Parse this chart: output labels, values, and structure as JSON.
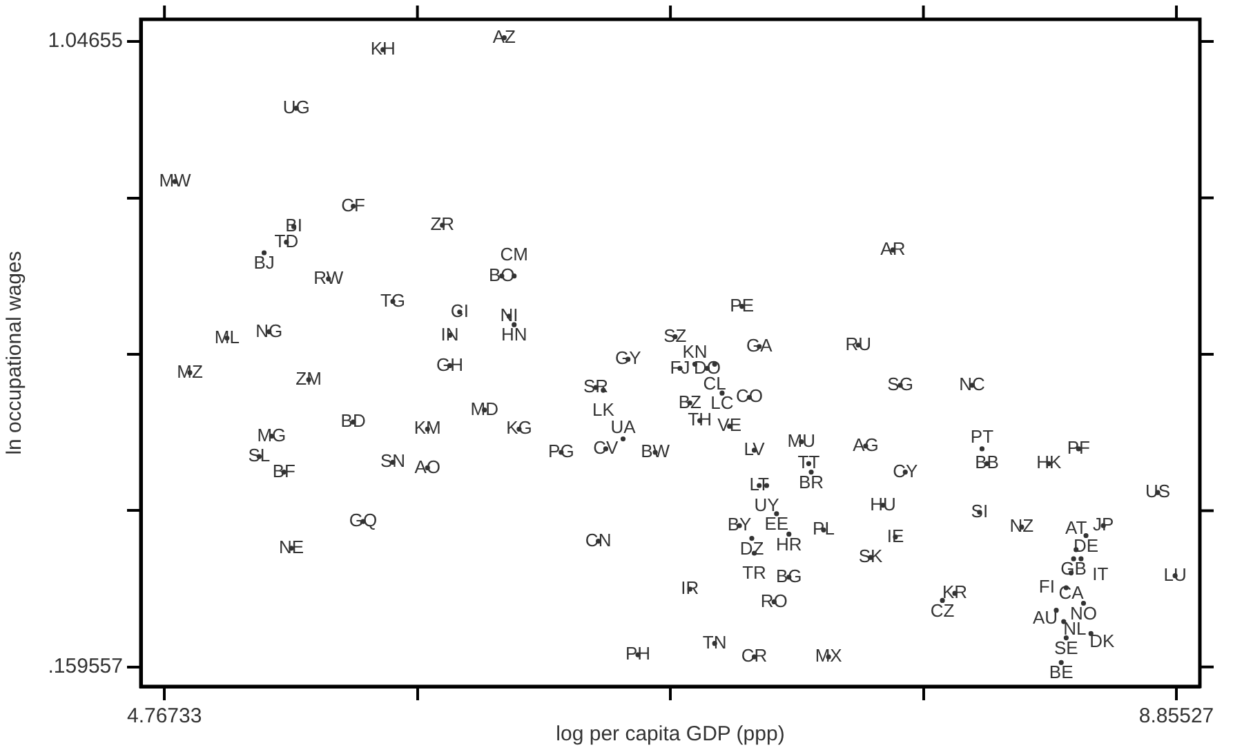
{
  "chart_data": {
    "type": "scatter",
    "xlabel": "log per capita GDP (ppp)",
    "ylabel": "ln occupational wages",
    "grid": false,
    "legend": false,
    "xlim": [
      4.672,
      8.95
    ],
    "ylim": [
      0.132,
      1.078
    ],
    "xticks": [
      4.76733,
      {
        "value": 5.789315,
        "label": null
      },
      {
        "value": 6.8113,
        "label": null
      },
      {
        "value": 7.833285,
        "label": null
      },
      8.85527
    ],
    "yticks": [
      {
        "value": 0.159557,
        "label": ".159557"
      },
      {
        "value": 0.38130525,
        "label": null
      },
      {
        "value": 0.6030535,
        "label": null
      },
      {
        "value": 0.82480175,
        "label": null
      },
      1.04655
    ],
    "series": [
      {
        "color": "#333333",
        "x": [
          5.65,
          6.14,
          5.3,
          4.81,
          5.53,
          5.29,
          5.26,
          5.17,
          5.89,
          5.43,
          6.13,
          6.18,
          5.69,
          5.96,
          6.16,
          6.18,
          5.92,
          5.02,
          5.19,
          4.87,
          5.35,
          5.92,
          6.64,
          6.51,
          6.54,
          6.83,
          6.85,
          6.91,
          6.96,
          6.99,
          7.1,
          7.17,
          7.57,
          7.74,
          8.03,
          7.71,
          6.89,
          7.02,
          7.13,
          6.93,
          7.05,
          5.53,
          5.83,
          6.06,
          6.2,
          5.2,
          5.15,
          5.25,
          5.69,
          5.83,
          6.37,
          6.55,
          6.62,
          6.75,
          7.15,
          7.34,
          7.37,
          7.38,
          7.6,
          7.76,
          8.09,
          8.07,
          8.34,
          8.46,
          8.78,
          7.17,
          7.2,
          7.67,
          8.06,
          8.23,
          8.56,
          8.49,
          8.45,
          8.44,
          8.47,
          8.43,
          8.41,
          8.48,
          8.37,
          8.4,
          8.41,
          8.51,
          8.39,
          8.85,
          5.57,
          5.28,
          6.52,
          7.24,
          7.09,
          7.29,
          7.43,
          7.14,
          7.15,
          7.72,
          7.62,
          7.29,
          6.89,
          7.23,
          7.96,
          7.91,
          6.68,
          6.99,
          7.15,
          7.45
        ],
        "values": [
          1.035,
          1.052,
          0.952,
          0.848,
          0.813,
          0.784,
          0.762,
          0.747,
          0.786,
          0.71,
          0.714,
          0.714,
          0.678,
          0.663,
          0.657,
          0.645,
          0.63,
          0.626,
          0.635,
          0.577,
          0.567,
          0.587,
          0.596,
          0.556,
          0.552,
          0.628,
          0.583,
          0.589,
          0.583,
          0.589,
          0.671,
          0.614,
          0.616,
          0.559,
          0.559,
          0.751,
          0.534,
          0.548,
          0.542,
          0.509,
          0.501,
          0.507,
          0.497,
          0.524,
          0.497,
          0.487,
          0.458,
          0.436,
          0.45,
          0.442,
          0.464,
          0.469,
          0.483,
          0.464,
          0.467,
          0.479,
          0.448,
          0.436,
          0.473,
          0.436,
          0.448,
          0.469,
          0.448,
          0.469,
          0.407,
          0.417,
          0.417,
          0.389,
          0.379,
          0.358,
          0.36,
          0.346,
          0.326,
          0.313,
          0.313,
          0.293,
          0.272,
          0.25,
          0.24,
          0.224,
          0.201,
          0.207,
          0.166,
          0.289,
          0.366,
          0.328,
          0.338,
          0.377,
          0.36,
          0.348,
          0.354,
          0.342,
          0.321,
          0.344,
          0.315,
          0.287,
          0.27,
          0.252,
          0.264,
          0.254,
          0.177,
          0.193,
          0.174,
          0.174
        ],
        "value_labels": [
          "KH",
          "AZ",
          "UG",
          "MW",
          "CF",
          "BI",
          "TD",
          "BJ",
          "ZR",
          "RW",
          "BO",
          "CM",
          "TG",
          "CI",
          "NI",
          "HN",
          "IN",
          "ML",
          "NG",
          "MZ",
          "ZM",
          "GH",
          "GY",
          "SR",
          "LK",
          "SZ",
          "FJ",
          "KN",
          "DO",
          "CL",
          "PE",
          "GA",
          "RU",
          "SG",
          "NC",
          "AR",
          "BZ",
          "LC",
          "CO",
          "TH",
          "VE",
          "BD",
          "KM",
          "MD",
          "KG",
          "MG",
          "SL",
          "BF",
          "SN",
          "AO",
          "PG",
          "CV",
          "UA",
          "BW",
          "LV",
          "MU",
          "TT",
          "BR",
          "AG",
          "CY",
          "BB",
          "PT",
          "HK",
          "PF",
          "US",
          "LT",
          "UY",
          "HU",
          "SI",
          "NZ",
          "JP",
          "DE",
          "AT",
          "GB",
          "IT",
          "CA",
          "FI",
          "NO",
          "AU",
          "NL",
          "SE",
          "DK",
          "BE",
          "LU",
          "GQ",
          "NE",
          "CN",
          "EE",
          "BY",
          "HR",
          "PL",
          "DZ",
          "TR",
          "IE",
          "SK",
          "BG",
          "IR",
          "RO",
          "KR",
          "CZ",
          "PH",
          "TN",
          "CR",
          "MX"
        ]
      }
    ]
  }
}
